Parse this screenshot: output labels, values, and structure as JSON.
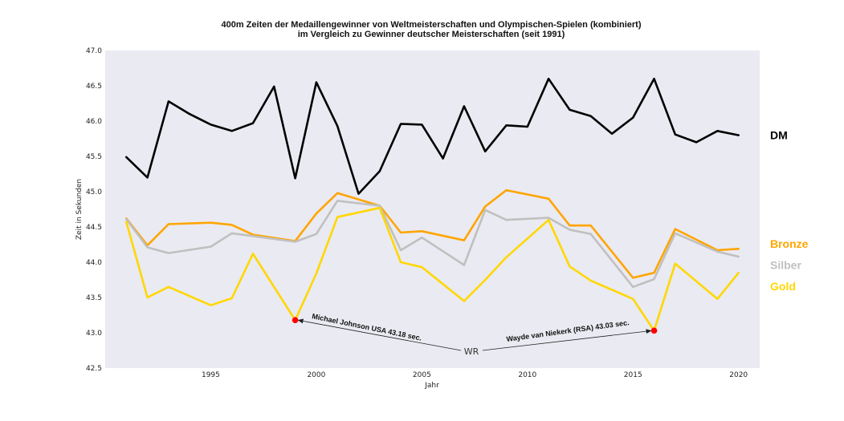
{
  "chart_data": {
    "type": "line",
    "title": "400m Zeiten der Medaillengewinner von Weltmeisterschaften und Olympischen-Spielen (kombiniert)",
    "subtitle": "im Vergleich zu Gewinner deutscher Meisterschaften (seit 1991)",
    "xlabel": "Jahr",
    "ylabel": "Zeit in Sekunden",
    "xlim": [
      1990,
      2021
    ],
    "ylim": [
      42.5,
      47.0
    ],
    "xticks": [
      1995,
      2000,
      2005,
      2010,
      2015,
      2020
    ],
    "yticks": [
      "42.5",
      "43.0",
      "43.5",
      "44.0",
      "44.5",
      "45.0",
      "45.5",
      "46.0",
      "46.5",
      "47.0"
    ],
    "grid": false,
    "background": "#eaeaf2",
    "legend_placement": "right, at each line's end",
    "series": [
      {
        "name": "DM",
        "color": "#000000",
        "points": [
          [
            1991,
            45.49
          ],
          [
            1992,
            45.2
          ],
          [
            1993,
            46.28
          ],
          [
            1994,
            46.1
          ],
          [
            1995,
            45.95
          ],
          [
            1996,
            45.86
          ],
          [
            1997,
            45.97
          ],
          [
            1998,
            46.49
          ],
          [
            1999,
            45.19
          ],
          [
            2000,
            46.55
          ],
          [
            2001,
            45.93
          ],
          [
            2002,
            44.97
          ],
          [
            2003,
            45.29
          ],
          [
            2004,
            45.96
          ],
          [
            2005,
            45.95
          ],
          [
            2006,
            45.47
          ],
          [
            2007,
            46.21
          ],
          [
            2008,
            45.57
          ],
          [
            2009,
            45.94
          ],
          [
            2010,
            45.92
          ],
          [
            2011,
            46.6
          ],
          [
            2012,
            46.16
          ],
          [
            2013,
            46.07
          ],
          [
            2014,
            45.82
          ],
          [
            2015,
            46.05
          ],
          [
            2016,
            46.6
          ],
          [
            2017,
            45.81
          ],
          [
            2018,
            45.7
          ],
          [
            2019,
            45.86
          ],
          [
            2020,
            45.8
          ]
        ]
      },
      {
        "name": "Bronze",
        "color": "#ffa500",
        "points": [
          [
            1991,
            44.62
          ],
          [
            1992,
            44.24
          ],
          [
            1993,
            44.54
          ],
          [
            1995,
            44.56
          ],
          [
            1996,
            44.53
          ],
          [
            1997,
            44.39
          ],
          [
            1999,
            44.3
          ],
          [
            2000,
            44.69
          ],
          [
            2001,
            44.98
          ],
          [
            2003,
            44.8
          ],
          [
            2004,
            44.42
          ],
          [
            2005,
            44.44
          ],
          [
            2007,
            44.31
          ],
          [
            2008,
            44.79
          ],
          [
            2009,
            45.02
          ],
          [
            2011,
            44.9
          ],
          [
            2012,
            44.52
          ],
          [
            2013,
            44.52
          ],
          [
            2015,
            43.78
          ],
          [
            2016,
            43.85
          ],
          [
            2017,
            44.47
          ],
          [
            2019,
            44.17
          ],
          [
            2020,
            44.19
          ]
        ]
      },
      {
        "name": "Silber",
        "color": "#c0c0c0",
        "points": [
          [
            1991,
            44.61
          ],
          [
            1992,
            44.21
          ],
          [
            1993,
            44.13
          ],
          [
            1995,
            44.22
          ],
          [
            1996,
            44.41
          ],
          [
            1997,
            44.37
          ],
          [
            1999,
            44.29
          ],
          [
            2000,
            44.4
          ],
          [
            2001,
            44.87
          ],
          [
            2003,
            44.8
          ],
          [
            2004,
            44.17
          ],
          [
            2005,
            44.35
          ],
          [
            2007,
            43.96
          ],
          [
            2008,
            44.74
          ],
          [
            2009,
            44.6
          ],
          [
            2011,
            44.63
          ],
          [
            2012,
            44.46
          ],
          [
            2013,
            44.4
          ],
          [
            2015,
            43.65
          ],
          [
            2016,
            43.76
          ],
          [
            2017,
            44.41
          ],
          [
            2019,
            44.15
          ],
          [
            2020,
            44.08
          ]
        ]
      },
      {
        "name": "Gold",
        "color": "#ffd700",
        "points": [
          [
            1991,
            44.57
          ],
          [
            1992,
            43.5
          ],
          [
            1993,
            43.65
          ],
          [
            1995,
            43.39
          ],
          [
            1996,
            43.49
          ],
          [
            1997,
            44.12
          ],
          [
            1999,
            43.18
          ],
          [
            2000,
            43.84
          ],
          [
            2001,
            44.64
          ],
          [
            2003,
            44.77
          ],
          [
            2004,
            44.0
          ],
          [
            2005,
            43.93
          ],
          [
            2007,
            43.45
          ],
          [
            2008,
            43.75
          ],
          [
            2009,
            44.07
          ],
          [
            2011,
            44.6
          ],
          [
            2012,
            43.94
          ],
          [
            2013,
            43.74
          ],
          [
            2015,
            43.48
          ],
          [
            2016,
            43.03
          ],
          [
            2017,
            43.98
          ],
          [
            2019,
            43.48
          ],
          [
            2020,
            43.85
          ]
        ]
      }
    ],
    "records": [
      {
        "year": 1999,
        "value": 43.18,
        "label": "Michael Johnson USA 43.18 sec."
      },
      {
        "year": 2016,
        "value": 43.03,
        "label": "Wayde van Niekerk (RSA) 43.03 sec."
      }
    ],
    "record_marker_color": "#ff0000",
    "wr_label": "WR"
  }
}
